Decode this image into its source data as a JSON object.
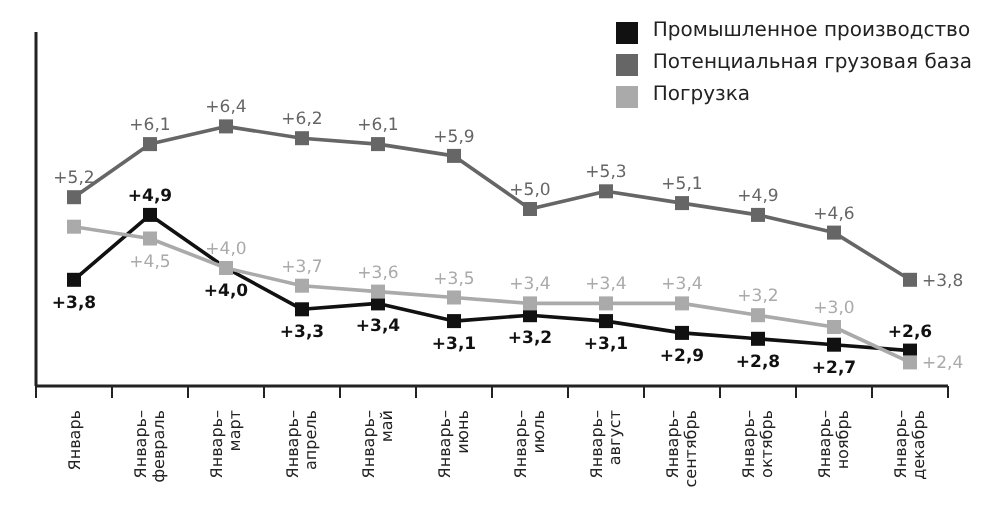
{
  "chart_data": {
    "type": "line",
    "categories": [
      "Январь",
      "Январь–февраль",
      "Январь–март",
      "Январь–апрель",
      "Январь–май",
      "Январь–июнь",
      "Январь–июль",
      "Январь–август",
      "Январь–сентябрь",
      "Январь–октябрь",
      "Январь–ноябрь",
      "Январь–декабрь"
    ],
    "series": [
      {
        "name": "Промышленное производство",
        "color": "#111111",
        "values": [
          3.8,
          4.9,
          4.0,
          3.3,
          3.4,
          3.1,
          3.2,
          3.1,
          2.9,
          2.8,
          2.7,
          2.6
        ],
        "value_labels": [
          "+3,8",
          "+4,9",
          "+4,0",
          "+3,3",
          "+3,4",
          "+3,1",
          "+3,2",
          "+3,1",
          "+2,9",
          "+2,8",
          "+2,7",
          "+2,6"
        ]
      },
      {
        "name": "Потенциальная грузовая база",
        "color": "#666666",
        "values": [
          5.2,
          6.1,
          6.4,
          6.2,
          6.1,
          5.9,
          5.0,
          5.3,
          5.1,
          4.9,
          4.6,
          3.8
        ],
        "value_labels": [
          "+5,2",
          "+6,1",
          "+6,4",
          "+6,2",
          "+6,1",
          "+5,9",
          "+5,0",
          "+5,3",
          "+5,1",
          "+4,9",
          "+4,6",
          "+3,8"
        ]
      },
      {
        "name": "Погрузка",
        "color": "#aaaaaa",
        "values": [
          4.7,
          4.5,
          4.0,
          3.7,
          3.6,
          3.5,
          3.4,
          3.4,
          3.4,
          3.2,
          3.0,
          2.4
        ],
        "value_labels": [
          null,
          "+4,5",
          "+4,0",
          "+3,7",
          "+3,6",
          "+3,5",
          "+3,4",
          "+3,4",
          "+3,4",
          "+3,2",
          "+3,0",
          "+2,4"
        ]
      }
    ],
    "ylim": [
      2,
      8
    ],
    "tick_labels": "x",
    "legend": "top right",
    "marker": "square",
    "line_style": "solid"
  }
}
